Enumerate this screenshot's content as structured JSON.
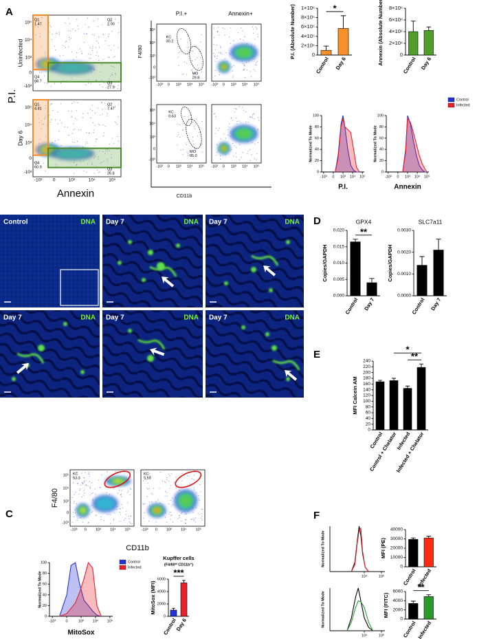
{
  "panel_a": {
    "label": "A",
    "y_axis": "P.I.",
    "x_axis": "Annexin",
    "rows": [
      "Uninfected",
      "Day 6"
    ],
    "quadrant_names": [
      "Q1",
      "Q2",
      "Q3",
      "Q4"
    ],
    "quadrant_values": [
      [
        "1.47",
        "2.00",
        "27.9",
        "68.7"
      ],
      [
        "4.81",
        "7.47",
        "26.6",
        "60.9"
      ]
    ],
    "flow_ticks": [
      "-10³",
      "0",
      "10³",
      "10⁴",
      "10⁵"
    ],
    "gating": {
      "columns": [
        "P.I.+",
        "Annexin+"
      ],
      "y_axis": "F4/80",
      "x_axis": "CD11b",
      "gates": [
        [
          {
            "name": "KC",
            "value": "30.2"
          },
          {
            "name": "MO",
            "value": "29.8"
          }
        ],
        [
          {
            "name": "KC",
            "value": "0.63"
          },
          {
            "name": "MO",
            "value": "95.0"
          }
        ]
      ]
    },
    "bars": [
      {
        "type": "bar",
        "ylabel": "P.I. (Absolute Number)",
        "categories": [
          "Control",
          "Day 6"
        ],
        "values": [
          100000,
          570000
        ],
        "errors": [
          90000,
          270000
        ],
        "colors": [
          "#f5902a",
          "#f5902a"
        ],
        "ylim": [
          0,
          1000000
        ],
        "yticks": [
          0,
          {
            "value": 200000,
            "label": "2×10⁵"
          },
          {
            "value": 400000,
            "label": "4×10⁵"
          },
          {
            "value": 600000,
            "label": "6×10⁵"
          },
          {
            "value": 800000,
            "label": "8×10⁵"
          },
          {
            "value": 1000000,
            "label": "1×10⁶"
          }
        ],
        "significance": [
          {
            "from": 0,
            "to": 1,
            "label": "*"
          }
        ]
      },
      {
        "type": "bar",
        "ylabel": "Annexin (Absolute Number)",
        "categories": [
          "Control",
          "Day 6"
        ],
        "values": [
          4000000,
          4200000
        ],
        "errors": [
          1800000,
          600000
        ],
        "colors": [
          "#4fa02a",
          "#4fa02a"
        ],
        "ylim": [
          0,
          8000000
        ],
        "yticks": [
          0,
          {
            "value": 2000000,
            "label": "2×10⁶"
          },
          {
            "value": 4000000,
            "label": "4×10⁶"
          },
          {
            "value": 6000000,
            "label": "6×10⁶"
          },
          {
            "value": 8000000,
            "label": "8×10⁶"
          }
        ]
      }
    ],
    "histograms": [
      {
        "type": "histogram",
        "xlabel": "P.I.",
        "ylabel": "Normalized To Mode",
        "filled": true,
        "xlim": [
          -0.2,
          4.2
        ],
        "ylim": [
          0,
          100
        ],
        "yticks": [
          0,
          20,
          40,
          60,
          80,
          100
        ],
        "xticks": [
          {
            "value": 0,
            "label": "-10³"
          },
          {
            "value": 1,
            "label": "0"
          },
          {
            "value": 2,
            "label": "10³"
          },
          {
            "value": 3,
            "label": "10⁴"
          },
          {
            "value": 4,
            "label": "10⁵"
          }
        ],
        "x": [
          1.2,
          1.5,
          1.8,
          2.0,
          2.2,
          2.5,
          2.8,
          3.1,
          3.4,
          3.7
        ],
        "series": [
          {
            "name": "Control",
            "color": "#2433d6",
            "values": [
              0,
              30,
              85,
              100,
              80,
              40,
              12,
              3,
              0,
              0
            ]
          },
          {
            "name": "Infected",
            "color": "#e8202a",
            "values": [
              0,
              25,
              80,
              95,
              80,
              75,
              70,
              40,
              8,
              0
            ]
          }
        ]
      },
      {
        "type": "histogram",
        "xlabel": "Annexin",
        "ylabel": "Normalized To Mode",
        "filled": true,
        "xlim": [
          -0.2,
          4.2
        ],
        "ylim": [
          0,
          100
        ],
        "yticks": [
          0,
          20,
          40,
          60,
          80,
          100
        ],
        "xticks": [
          {
            "value": 0,
            "label": "-10³"
          },
          {
            "value": 1,
            "label": "0"
          },
          {
            "value": 2,
            "label": "10³"
          },
          {
            "value": 3,
            "label": "10⁴"
          },
          {
            "value": 4,
            "label": "10⁵"
          }
        ],
        "x": [
          1.5,
          1.8,
          2.0,
          2.3,
          2.6,
          2.9,
          3.2,
          3.5,
          3.8,
          4.0
        ],
        "series": [
          {
            "name": "Control",
            "color": "#2433d6",
            "values": [
              0,
              40,
              100,
              85,
              55,
              30,
              12,
              4,
              0,
              0
            ]
          },
          {
            "name": "Infected",
            "color": "#e8202a",
            "values": [
              0,
              35,
              95,
              88,
              70,
              50,
              30,
              15,
              5,
              0
            ]
          }
        ]
      }
    ]
  },
  "panel_b": {
    "label": "B",
    "images": [
      {
        "title": "Control",
        "stain": "DNA"
      },
      {
        "title": "Day 7",
        "stain": "DNA"
      },
      {
        "title": "Day 7",
        "stain": "DNA"
      },
      {
        "title": "Day 7",
        "stain": "DNA"
      },
      {
        "title": "Day 7",
        "stain": "DNA"
      },
      {
        "title": "Day 7",
        "stain": "DNA"
      }
    ]
  },
  "panel_c": {
    "label": "C",
    "y_axis": "F4/80",
    "x_axis": "CD11b",
    "flow_ticks": [
      "-10³",
      "0",
      "10³",
      "10⁴",
      "10⁵"
    ],
    "gates": [
      {
        "name": "KC",
        "value": "53.3"
      },
      {
        "name": "KC",
        "value": "5.59"
      }
    ],
    "histogram": {
      "type": "histogram",
      "xlabel": "MitoSox",
      "ylabel": "Normalized To Mode",
      "filled": true,
      "xlim": [
        -0.2,
        4.2
      ],
      "ylim": [
        0,
        100
      ],
      "yticks": [
        0,
        20,
        40,
        60,
        80,
        100
      ],
      "xticks": [
        {
          "value": 0,
          "label": "-10³"
        },
        {
          "value": 1,
          "label": "0"
        },
        {
          "value": 2,
          "label": "10³"
        },
        {
          "value": 3,
          "label": "10⁴"
        },
        {
          "value": 4,
          "label": "10⁵"
        }
      ],
      "x": [
        0.5,
        1.0,
        1.3,
        1.6,
        1.9,
        2.2,
        2.5,
        2.8,
        3.1,
        3.4
      ],
      "series": [
        {
          "name": "Control",
          "color": "#2433d6",
          "values": [
            0,
            40,
            95,
            100,
            60,
            30,
            20,
            10,
            2,
            0
          ]
        },
        {
          "name": "Infected",
          "color": "#e8202a",
          "values": [
            0,
            5,
            15,
            25,
            45,
            70,
            100,
            90,
            20,
            0
          ]
        }
      ]
    },
    "bar": {
      "type": "bar",
      "title": [
        "Kupffer cells",
        "(F4/80ʰⁱ CD11b⁺)"
      ],
      "ylabel": "MitoSox (MFI)",
      "categories": [
        "Control",
        "Day 6"
      ],
      "values": [
        1000,
        5400
      ],
      "errors": [
        300,
        400
      ],
      "colors": [
        "#2433d6",
        "#e8202a"
      ],
      "ylim": [
        0,
        6000
      ],
      "yticks": [
        0,
        2000,
        4000,
        6000
      ],
      "significance": [
        {
          "from": 0,
          "to": 1,
          "label": "***"
        }
      ]
    }
  },
  "panel_d": {
    "label": "D",
    "bars": [
      {
        "type": "bar",
        "title": "GPX4",
        "ylabel": "Copies/GAPDH",
        "categories": [
          "Control",
          "Day 7"
        ],
        "values": [
          0.0165,
          0.004
        ],
        "errors": [
          0.0008,
          0.0013
        ],
        "colors": [
          "#000000",
          "#000000"
        ],
        "ylim": [
          0,
          0.02
        ],
        "yticks": [
          {
            "value": 0,
            "label": "0.000"
          },
          {
            "value": 0.005,
            "label": "0.005"
          },
          {
            "value": 0.01,
            "label": "0.010"
          },
          {
            "value": 0.015,
            "label": "0.015"
          },
          {
            "value": 0.02,
            "label": "0.020"
          }
        ],
        "significance": [
          {
            "from": 0,
            "to": 1,
            "label": "**"
          }
        ]
      },
      {
        "type": "bar",
        "title": "SLC7a11",
        "ylabel": "Copies/GAPDH",
        "categories": [
          "Control",
          "Day 7"
        ],
        "values": [
          0.0014,
          0.0021
        ],
        "errors": [
          0.0004,
          0.0005
        ],
        "colors": [
          "#000000",
          "#000000"
        ],
        "ylim": [
          0,
          0.003
        ],
        "yticks": [
          {
            "value": 0,
            "label": "0.0000"
          },
          {
            "value": 0.001,
            "label": "0.0010"
          },
          {
            "value": 0.002,
            "label": "0.0020"
          },
          {
            "value": 0.003,
            "label": "0.0030"
          }
        ]
      }
    ]
  },
  "panel_e": {
    "label": "E",
    "bar": {
      "type": "bar",
      "ylabel": "MFI Calcein AM",
      "categories": [
        "Control",
        "Control + Chelator",
        "Infected",
        "Infected + Chelator"
      ],
      "values": [
        168,
        172,
        145,
        218
      ],
      "errors": [
        5,
        8,
        8,
        12
      ],
      "colors": [
        "#000000",
        "#000000",
        "#000000",
        "#000000"
      ],
      "ylim": [
        0,
        240
      ],
      "yticks": [
        0,
        20,
        40,
        60,
        80,
        100,
        120,
        140,
        160,
        180,
        200,
        220,
        240
      ],
      "significance": [
        {
          "from": 2,
          "to": 3,
          "label": "**"
        },
        {
          "from": 1,
          "to": 3,
          "label": "*"
        }
      ]
    }
  },
  "panel_f": {
    "label": "F",
    "rows": [
      {
        "histogram": {
          "type": "histogram",
          "ylabel": "Normalized To Mode",
          "filled": false,
          "xlim": [
            0,
            6.4
          ],
          "ylim": [
            0,
            100
          ],
          "xticks": [
            {
              "value": 4,
              "label": "10⁴"
            },
            {
              "value": 6,
              "label": "10⁶"
            }
          ],
          "x": [
            2.5,
            2.9,
            3.2,
            3.4,
            3.6,
            3.8,
            4.1,
            4.5
          ],
          "series": [
            {
              "color": "#000000",
              "values": [
                0,
                20,
                70,
                100,
                80,
                40,
                10,
                0
              ]
            },
            {
              "color": "#e8202a",
              "values": [
                0,
                15,
                65,
                90,
                95,
                45,
                10,
                0
              ]
            }
          ]
        },
        "bar": {
          "type": "bar",
          "ylabel": "MFI (PE)",
          "categories": [
            "Control",
            "Infected"
          ],
          "values": [
            29500,
            31000
          ],
          "errors": [
            1500,
            2000
          ],
          "colors": [
            "#000000",
            "#ff2a10"
          ],
          "ylim": [
            0,
            40000
          ],
          "yticks": [
            0,
            10000,
            20000,
            30000,
            40000
          ]
        }
      },
      {
        "histogram": {
          "type": "histogram",
          "ylabel": "Normalized To Mode",
          "filled": false,
          "xlim": [
            0,
            6.4
          ],
          "ylim": [
            0,
            100
          ],
          "xticks": [
            {
              "value": 4,
              "label": "10⁴"
            },
            {
              "value": 6,
              "label": "10⁶"
            }
          ],
          "x": [
            2.0,
            2.5,
            3.0,
            3.3,
            3.6,
            4.0,
            4.5,
            5.0
          ],
          "series": [
            {
              "color": "#000000",
              "values": [
                0,
                30,
                80,
                100,
                70,
                30,
                8,
                0
              ]
            },
            {
              "color": "#2a9a2a",
              "values": [
                0,
                20,
                55,
                70,
                68,
                55,
                20,
                0
              ]
            }
          ]
        },
        "bar": {
          "type": "bar",
          "ylabel": "MFI (FITC)",
          "categories": [
            "Control",
            "Infected"
          ],
          "values": [
            3400,
            4900
          ],
          "errors": [
            500,
            400
          ],
          "colors": [
            "#000000",
            "#2a9a2a"
          ],
          "ylim": [
            0,
            6000
          ],
          "yticks": [
            0,
            2000,
            4000,
            6000
          ],
          "significance": [
            {
              "from": 0,
              "to": 1,
              "label": "**"
            }
          ]
        }
      }
    ]
  }
}
